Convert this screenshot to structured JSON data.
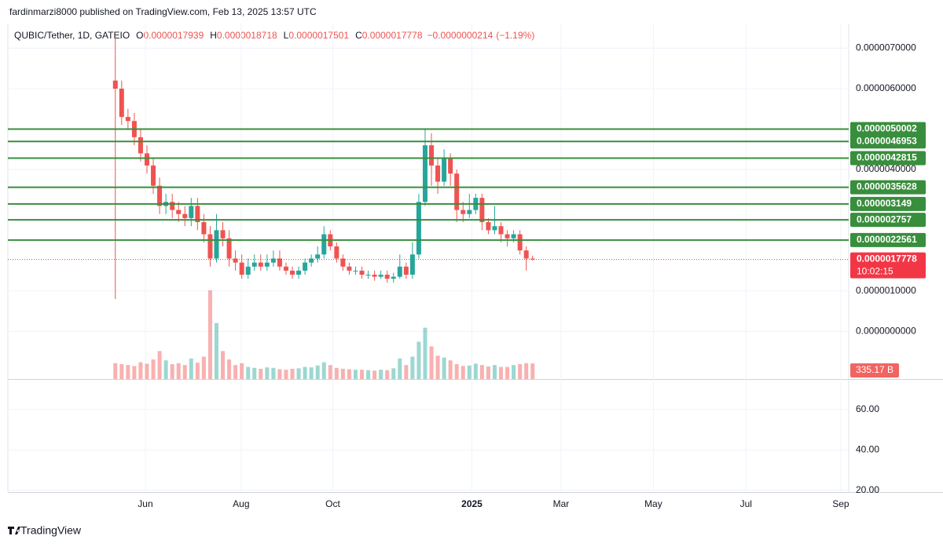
{
  "header": {
    "published": "fardinmarzi8000 published on TradingView.com, Feb 13, 2025 13:57 UTC"
  },
  "footer": {
    "brand": "TradingView"
  },
  "chart_data": {
    "type": "candlestick",
    "symbol": "QUBIC/Tether, 1D, GATEIO",
    "legend": [
      {
        "key": "O",
        "value": 1.7939e-06
      },
      {
        "key": "H",
        "value": 1.8718e-06
      },
      {
        "key": "L",
        "value": 1.7501e-06
      },
      {
        "key": "C",
        "value": 1.7778e-06
      }
    ],
    "change": {
      "value": -2.14e-08,
      "label": "−0.0000000214"
    },
    "change_pct": {
      "value": -1.19,
      "label": "(−1.19%)"
    },
    "up_color": "#26a69a",
    "down_color": "#ef5350",
    "level_color": "#388e3c",
    "last_color": "#f23645",
    "xlim": [
      -17,
      116
    ],
    "xticks": [
      {
        "value": 4.75,
        "label": "Jun"
      },
      {
        "value": 19.9,
        "label": "Aug"
      },
      {
        "value": 34.4,
        "label": "Oct"
      },
      {
        "value": 56.4,
        "label": "2025"
      },
      {
        "value": 70.5,
        "label": "Mar"
      },
      {
        "value": 85.1,
        "label": "May"
      },
      {
        "value": 99.75,
        "label": "Jul"
      },
      {
        "value": 114.75,
        "label": "Sep"
      }
    ],
    "ylim": [
      -1.18e-06,
      7.61e-06
    ],
    "yticks": [
      {
        "value": 7e-06,
        "label": "0.0000070000"
      },
      {
        "value": 6e-06,
        "label": "0.0000060000"
      },
      {
        "value": 4e-06,
        "label": "0.0000040000"
      },
      {
        "value": 1e-06,
        "label": "0.0000010000"
      },
      {
        "value": 0,
        "label": "0.0000000000"
      }
    ],
    "grid": true,
    "open": [
      6.2e-06,
      6e-06,
      5.3e-06,
      5.2e-06,
      4.8e-06,
      4.4e-06,
      4.1e-06,
      3.6e-06,
      3.1e-06,
      3.2e-06,
      3e-06,
      2.9e-06,
      2.8e-06,
      3.1e-06,
      2.7e-06,
      2.4e-06,
      1.8e-06,
      2.5e-06,
      2.3e-06,
      1.8e-06,
      1.7e-06,
      1.4e-06,
      1.6e-06,
      1.7e-06,
      1.6e-06,
      1.7e-06,
      1.8e-06,
      1.6e-06,
      1.5e-06,
      1.4e-06,
      1.5e-06,
      1.7e-06,
      1.8e-06,
      1.9e-06,
      2.4e-06,
      2.1e-06,
      1.8e-06,
      1.6e-06,
      1.5e-06,
      1.5e-06,
      1.4e-06,
      1.4e-06,
      1.35e-06,
      1.4e-06,
      1.3e-06,
      1.35e-06,
      1.6e-06,
      1.4e-06,
      1.9e-06,
      3.2e-06,
      4.6e-06,
      4.1e-06,
      3.7e-06,
      4.3e-06,
      3.9e-06,
      3e-06,
      2.9e-06,
      3e-06,
      3.3e-06,
      2.7e-06,
      2.5e-06,
      2.6e-06,
      2.4e-06,
      2.3e-06,
      2.4e-06,
      2e-06,
      1.8e-06
    ],
    "high": [
      7.3e-06,
      6.2e-06,
      5.5e-06,
      5.4e-06,
      5e-06,
      4.6e-06,
      4.3e-06,
      3.8e-06,
      3.4e-06,
      3.4e-06,
      3.2e-06,
      3.1e-06,
      3.3e-06,
      3.3e-06,
      2.9e-06,
      2.6e-06,
      2.9e-06,
      2.7e-06,
      2.5e-06,
      2e-06,
      1.9e-06,
      1.8e-06,
      1.9e-06,
      1.9e-06,
      1.9e-06,
      2e-06,
      2e-06,
      1.7e-06,
      1.6e-06,
      1.6e-06,
      1.8e-06,
      1.9e-06,
      2.1e-06,
      2.6e-06,
      2.5e-06,
      2.2e-06,
      1.9e-06,
      1.7e-06,
      1.6e-06,
      1.6e-06,
      1.5e-06,
      1.5e-06,
      1.5e-06,
      1.5e-06,
      1.45e-06,
      1.9e-06,
      1.7e-06,
      2.2e-06,
      3.4e-06,
      5e-06,
      4.9e-06,
      4.3e-06,
      4.5e-06,
      4.4e-06,
      4e-06,
      3.2e-06,
      3.4e-06,
      3.4e-06,
      3.4e-06,
      2.8e-06,
      3.1e-06,
      2.7e-06,
      2.5e-06,
      2.5e-06,
      2.5e-06,
      2.1e-06,
      1.87e-06
    ],
    "low": [
      8e-07,
      5.1e-06,
      5e-06,
      4.6e-06,
      4.2e-06,
      3.9e-06,
      3.4e-06,
      2.9e-06,
      2.9e-06,
      2.8e-06,
      2.7e-06,
      2.6e-06,
      2.6e-06,
      2.5e-06,
      2.2e-06,
      1.6e-06,
      1.7e-06,
      2.1e-06,
      1.6e-06,
      1.5e-06,
      1.3e-06,
      1.3e-06,
      1.5e-06,
      1.5e-06,
      1.5e-06,
      1.6e-06,
      1.5e-06,
      1.4e-06,
      1.3e-06,
      1.3e-06,
      1.4e-06,
      1.6e-06,
      1.7e-06,
      1.8e-06,
      2e-06,
      1.7e-06,
      1.5e-06,
      1.4e-06,
      1.4e-06,
      1.3e-06,
      1.3e-06,
      1.25e-06,
      1.3e-06,
      1.2e-06,
      1.2e-06,
      1.3e-06,
      1.3e-06,
      1.3e-06,
      1.8e-06,
      3.1e-06,
      3.6e-06,
      3.4e-06,
      3.6e-06,
      3.6e-06,
      2.7e-06,
      2.7e-06,
      2.8e-06,
      2.9e-06,
      2.5e-06,
      2.4e-06,
      2.4e-06,
      2.2e-06,
      2.1e-06,
      2.2e-06,
      1.9e-06,
      1.5e-06,
      1.75e-06
    ],
    "close": [
      6e-06,
      5.3e-06,
      5.2e-06,
      4.8e-06,
      4.4e-06,
      4.1e-06,
      3.6e-06,
      3.1e-06,
      3.2e-06,
      3e-06,
      2.9e-06,
      2.8e-06,
      3.1e-06,
      2.7e-06,
      2.4e-06,
      1.8e-06,
      2.5e-06,
      2.3e-06,
      1.8e-06,
      1.7e-06,
      1.4e-06,
      1.6e-06,
      1.7e-06,
      1.6e-06,
      1.7e-06,
      1.8e-06,
      1.6e-06,
      1.5e-06,
      1.4e-06,
      1.5e-06,
      1.7e-06,
      1.8e-06,
      1.9e-06,
      2.4e-06,
      2.1e-06,
      1.8e-06,
      1.6e-06,
      1.5e-06,
      1.5e-06,
      1.4e-06,
      1.4e-06,
      1.35e-06,
      1.4e-06,
      1.3e-06,
      1.35e-06,
      1.6e-06,
      1.4e-06,
      1.9e-06,
      3.2e-06,
      4.6e-06,
      4.1e-06,
      3.7e-06,
      4.3e-06,
      3.9e-06,
      3e-06,
      2.9e-06,
      3e-06,
      3.3e-06,
      2.7e-06,
      2.5e-06,
      2.6e-06,
      2.4e-06,
      2.3e-06,
      2.4e-06,
      2e-06,
      1.8e-06,
      1.78e-06
    ],
    "volume": [
      340000000000.0,
      320000000000.0,
      300000000000.0,
      280000000000.0,
      360000000000.0,
      330000000000.0,
      420000000000.0,
      600000000000.0,
      400000000000.0,
      320000000000.0,
      340000000000.0,
      300000000000.0,
      440000000000.0,
      350000000000.0,
      480000000000.0,
      1900000000000.0,
      1200000000000.0,
      600000000000.0,
      420000000000.0,
      300000000000.0,
      340000000000.0,
      260000000000.0,
      240000000000.0,
      220000000000.0,
      250000000000.0,
      240000000000.0,
      210000000000.0,
      200000000000.0,
      220000000000.0,
      230000000000.0,
      260000000000.0,
      250000000000.0,
      290000000000.0,
      360000000000.0,
      300000000000.0,
      240000000000.0,
      220000000000.0,
      210000000000.0,
      200000000000.0,
      200000000000.0,
      190000000000.0,
      180000000000.0,
      200000000000.0,
      190000000000.0,
      230000000000.0,
      440000000000.0,
      300000000000.0,
      480000000000.0,
      800000000000.0,
      1100000000000.0,
      700000000000.0,
      500000000000.0,
      460000000000.0,
      400000000000.0,
      320000000000.0,
      280000000000.0,
      290000000000.0,
      330000000000.0,
      300000000000.0,
      270000000000.0,
      300000000000.0,
      260000000000.0,
      260000000000.0,
      300000000000.0,
      320000000000.0,
      340000000000.0,
      335170000000.0
    ],
    "volume_label": {
      "value": 335170000000,
      "label": "335.17 B"
    },
    "levels": [
      5.0002e-06,
      4.6953e-06,
      4.2815e-06,
      3.5628e-06,
      3.149e-06,
      2.757e-06,
      2.2561e-06
    ],
    "last_price": 1.7778e-06,
    "countdown": "10:02:15",
    "lower_ylim": [
      20,
      74.6
    ],
    "lower_yticks": [
      {
        "value": 60,
        "label": "60.00"
      },
      {
        "value": 40,
        "label": "40.00"
      },
      {
        "value": 20,
        "label": "20.00"
      }
    ]
  }
}
